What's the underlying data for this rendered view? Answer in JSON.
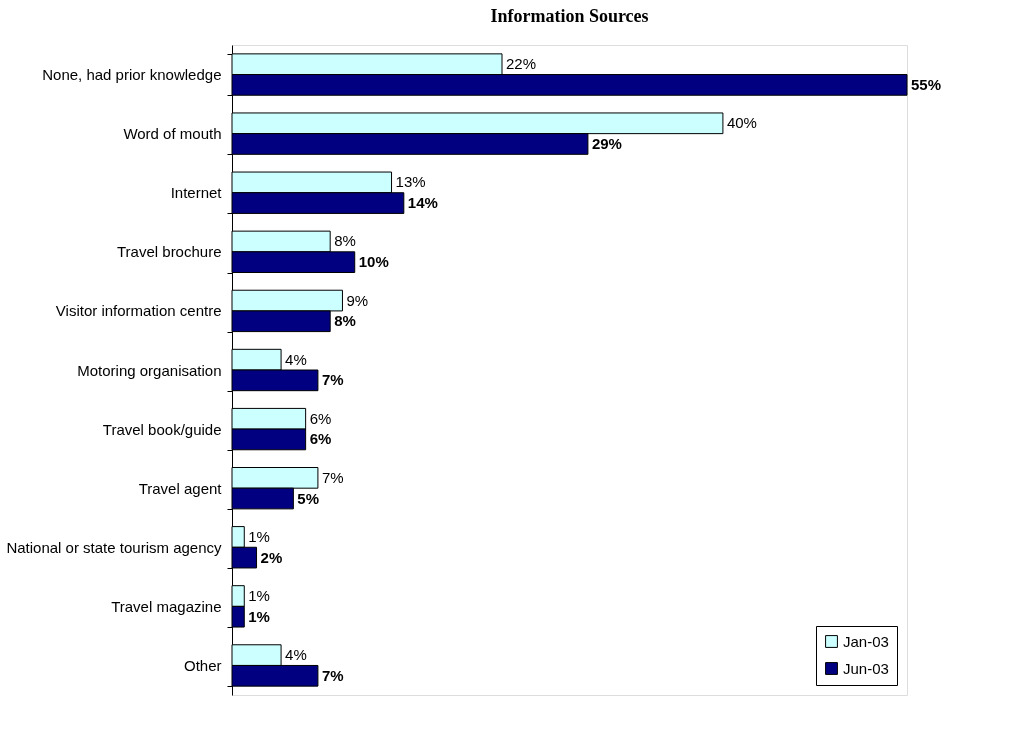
{
  "chart_data": {
    "type": "bar",
    "orientation": "horizontal",
    "title": "Information Sources",
    "categories": [
      "None, had prior knowledge",
      "Word of mouth",
      "Internet",
      "Travel brochure",
      "Visitor information centre",
      "Motoring organisation",
      "Travel book/guide",
      "Travel agent",
      "National or state tourism agency",
      "Travel magazine",
      "Other"
    ],
    "series": [
      {
        "name": "Jan-03",
        "color": "#ccffff",
        "values": [
          22,
          40,
          13,
          8,
          9,
          4,
          6,
          7,
          1,
          1,
          4
        ],
        "value_labels": [
          "22%",
          "40%",
          "13%",
          "8%",
          "9%",
          "4%",
          "6%",
          "7%",
          "1%",
          "1%",
          "4%"
        ]
      },
      {
        "name": "Jun-03",
        "color": "#000080",
        "values": [
          55,
          29,
          14,
          10,
          8,
          7,
          6,
          5,
          2,
          1,
          7
        ],
        "value_labels": [
          "55%",
          "29%",
          "14%",
          "10%",
          "8%",
          "7%",
          "6%",
          "5%",
          "2%",
          "1%",
          "7%"
        ]
      }
    ],
    "legend": "bottom right",
    "grid": false
  }
}
